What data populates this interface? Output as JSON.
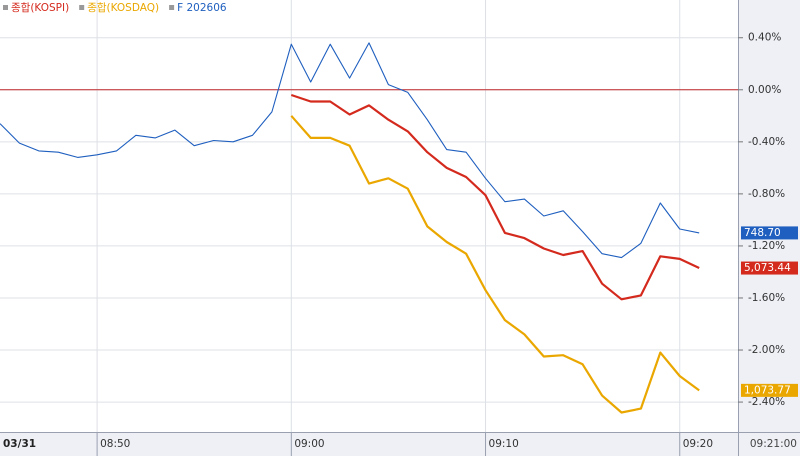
{
  "chart_data": {
    "type": "line",
    "legend": [
      "종합(KOSPI)",
      "종합(KOSDAQ)",
      "F 202606"
    ],
    "date_label": "03/31",
    "current_time": "09:21:00",
    "xlim": [
      "08:45",
      "09:23"
    ],
    "xticks": [
      "08:50",
      "09:00",
      "09:10",
      "09:20"
    ],
    "ylim": [
      -2.63,
      0.69
    ],
    "yticks": [
      {
        "value": 0.4,
        "label": "0.40%"
      },
      {
        "value": 0,
        "label": "0.00%"
      },
      {
        "value": -0.4,
        "label": "-0.40%"
      },
      {
        "value": -0.8,
        "label": "-0.80%"
      },
      {
        "value": -1.2,
        "label": "-1.20%"
      },
      {
        "value": -1.6,
        "label": "-1.60%"
      },
      {
        "value": -2.0,
        "label": "-2.00%"
      },
      {
        "value": -2.4,
        "label": "-2.40%"
      }
    ],
    "grid": true,
    "reference_line": {
      "value": 0,
      "color": "#c0282a"
    },
    "series": [
      {
        "name": "종합(KOSPI)",
        "color": "#d42a1e",
        "width": 2.2,
        "last_label": "5,073.44",
        "start": "09:00",
        "values": [
          -0.04,
          -0.09,
          -0.09,
          -0.19,
          -0.12,
          -0.23,
          -0.32,
          -0.48,
          -0.6,
          -0.67,
          -0.81,
          -1.1,
          -1.14,
          -1.22,
          -1.27,
          -1.24,
          -1.49,
          -1.61,
          -1.58,
          -1.28,
          -1.3,
          -1.37
        ]
      },
      {
        "name": "종합(KOSDAQ)",
        "color": "#eaa700",
        "width": 2.2,
        "last_label": "1,073.77",
        "start": "09:00",
        "values": [
          -0.2,
          -0.37,
          -0.37,
          -0.43,
          -0.72,
          -0.68,
          -0.76,
          -1.05,
          -1.17,
          -1.26,
          -1.54,
          -1.77,
          -1.88,
          -2.05,
          -2.04,
          -2.11,
          -2.35,
          -2.48,
          -2.45,
          -2.02,
          -2.2,
          -2.31
        ]
      },
      {
        "name": "F 202606",
        "color": "#1f5fbf",
        "width": 1.1,
        "last_label": "748.70",
        "start": "08:45",
        "values": [
          -0.26,
          -0.41,
          -0.47,
          -0.48,
          -0.52,
          -0.5,
          -0.47,
          -0.35,
          -0.37,
          -0.31,
          -0.43,
          -0.39,
          -0.4,
          -0.35,
          -0.17,
          0.35,
          0.06,
          0.35,
          0.09,
          0.36,
          0.04,
          -0.02,
          -0.23,
          -0.46,
          -0.48,
          -0.68,
          -0.86,
          -0.84,
          -0.97,
          -0.93,
          -1.09,
          -1.26,
          -1.29,
          -1.18,
          -0.87,
          -1.07,
          -1.1
        ]
      }
    ]
  }
}
